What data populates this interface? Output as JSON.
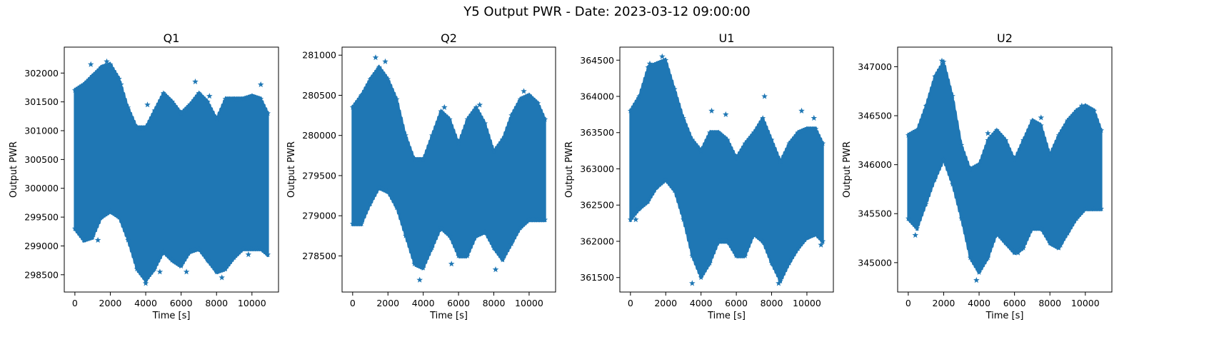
{
  "figure": {
    "title": "Y5 Output PWR - Date: 2023-03-12 09:00:00"
  },
  "chart_data": [
    {
      "type": "scatter",
      "title": "Q1",
      "xlabel": "Time [s]",
      "ylabel": "Output PWR",
      "marker": "star",
      "color": "#1f77b4",
      "xlim": [
        -600,
        11500
      ],
      "ylim": [
        298200,
        302450
      ],
      "xticks": [
        0,
        2000,
        4000,
        6000,
        8000,
        10000
      ],
      "yticks": [
        298500,
        299000,
        299500,
        300000,
        300500,
        301000,
        301500,
        302000
      ],
      "x_range": [
        0,
        10900
      ],
      "upper_envelope": [
        [
          0,
          301700
        ],
        [
          500,
          301800
        ],
        [
          1000,
          301950
        ],
        [
          1500,
          302100
        ],
        [
          2000,
          302150
        ],
        [
          2500,
          301900
        ],
        [
          3000,
          301400
        ],
        [
          3500,
          301050
        ],
        [
          4000,
          301050
        ],
        [
          4500,
          301350
        ],
        [
          5000,
          301650
        ],
        [
          5500,
          301500
        ],
        [
          6000,
          301300
        ],
        [
          6500,
          301450
        ],
        [
          7000,
          301650
        ],
        [
          7500,
          301500
        ],
        [
          8000,
          301200
        ],
        [
          8500,
          301550
        ],
        [
          9000,
          301550
        ],
        [
          9500,
          301550
        ],
        [
          10000,
          301600
        ],
        [
          10500,
          301550
        ],
        [
          10900,
          301300
        ]
      ],
      "lower_envelope": [
        [
          0,
          299300
        ],
        [
          500,
          299100
        ],
        [
          1000,
          299150
        ],
        [
          1500,
          299500
        ],
        [
          2000,
          299600
        ],
        [
          2500,
          299500
        ],
        [
          3000,
          299100
        ],
        [
          3500,
          298600
        ],
        [
          4000,
          298400
        ],
        [
          4500,
          298600
        ],
        [
          5000,
          298900
        ],
        [
          5500,
          298750
        ],
        [
          6000,
          298650
        ],
        [
          6500,
          298900
        ],
        [
          7000,
          298950
        ],
        [
          7500,
          298750
        ],
        [
          8000,
          298550
        ],
        [
          8500,
          298600
        ],
        [
          9000,
          298800
        ],
        [
          9500,
          298950
        ],
        [
          10000,
          298950
        ],
        [
          10500,
          298950
        ],
        [
          10900,
          298850
        ]
      ],
      "outliers": [
        [
          900,
          302150
        ],
        [
          1800,
          302200
        ],
        [
          2600,
          301800
        ],
        [
          4100,
          301450
        ],
        [
          6800,
          301850
        ],
        [
          7600,
          301600
        ],
        [
          10500,
          301800
        ],
        [
          1300,
          299100
        ],
        [
          4000,
          298350
        ],
        [
          4800,
          298550
        ],
        [
          6300,
          298550
        ],
        [
          8300,
          298450
        ],
        [
          9800,
          298850
        ]
      ]
    },
    {
      "type": "scatter",
      "title": "Q2",
      "xlabel": "Time [s]",
      "ylabel": "Output PWR",
      "marker": "star",
      "color": "#1f77b4",
      "xlim": [
        -600,
        11500
      ],
      "ylim": [
        278050,
        281100
      ],
      "xticks": [
        0,
        2000,
        4000,
        6000,
        8000,
        10000
      ],
      "yticks": [
        278500,
        279000,
        279500,
        280000,
        280500,
        281000
      ],
      "x_range": [
        0,
        10900
      ],
      "upper_envelope": [
        [
          0,
          280350
        ],
        [
          500,
          280500
        ],
        [
          1000,
          280700
        ],
        [
          1500,
          280850
        ],
        [
          2000,
          280700
        ],
        [
          2500,
          280450
        ],
        [
          3000,
          280000
        ],
        [
          3500,
          279700
        ],
        [
          4000,
          279700
        ],
        [
          4500,
          280000
        ],
        [
          5000,
          280300
        ],
        [
          5500,
          280200
        ],
        [
          6000,
          279900
        ],
        [
          6500,
          280200
        ],
        [
          7000,
          280350
        ],
        [
          7500,
          280150
        ],
        [
          8000,
          279800
        ],
        [
          8500,
          279950
        ],
        [
          9000,
          280250
        ],
        [
          9500,
          280450
        ],
        [
          10000,
          280500
        ],
        [
          10500,
          280400
        ],
        [
          10900,
          280200
        ]
      ],
      "lower_envelope": [
        [
          0,
          278900
        ],
        [
          500,
          278900
        ],
        [
          1000,
          279150
        ],
        [
          1500,
          279350
        ],
        [
          2000,
          279300
        ],
        [
          2500,
          279100
        ],
        [
          3000,
          278750
        ],
        [
          3500,
          278400
        ],
        [
          4000,
          278350
        ],
        [
          4500,
          278600
        ],
        [
          5000,
          278850
        ],
        [
          5500,
          278750
        ],
        [
          6000,
          278500
        ],
        [
          6500,
          278500
        ],
        [
          7000,
          278750
        ],
        [
          7500,
          278800
        ],
        [
          8000,
          278600
        ],
        [
          8500,
          278450
        ],
        [
          9000,
          278650
        ],
        [
          9500,
          278850
        ],
        [
          10000,
          278950
        ],
        [
          10500,
          278950
        ],
        [
          10900,
          278950
        ]
      ],
      "outliers": [
        [
          1300,
          280970
        ],
        [
          1850,
          280920
        ],
        [
          5200,
          280350
        ],
        [
          7200,
          280380
        ],
        [
          9700,
          280550
        ],
        [
          3800,
          278200
        ],
        [
          5600,
          278400
        ],
        [
          8100,
          278330
        ]
      ]
    },
    {
      "type": "scatter",
      "title": "U1",
      "xlabel": "Time [s]",
      "ylabel": "Output PWR",
      "marker": "star",
      "color": "#1f77b4",
      "xlim": [
        -600,
        11500
      ],
      "ylim": [
        361300,
        364680
      ],
      "xticks": [
        0,
        2000,
        4000,
        6000,
        8000,
        10000
      ],
      "yticks": [
        361500,
        362000,
        362500,
        363000,
        363500,
        364000,
        364500
      ],
      "x_range": [
        0,
        10900
      ],
      "upper_envelope": [
        [
          0,
          363800
        ],
        [
          500,
          364000
        ],
        [
          1000,
          364400
        ],
        [
          1500,
          364450
        ],
        [
          2000,
          364500
        ],
        [
          2500,
          364100
        ],
        [
          3000,
          363700
        ],
        [
          3500,
          363400
        ],
        [
          4000,
          363250
        ],
        [
          4500,
          363500
        ],
        [
          5000,
          363500
        ],
        [
          5500,
          363400
        ],
        [
          6000,
          363150
        ],
        [
          6500,
          363350
        ],
        [
          7000,
          363500
        ],
        [
          7500,
          363700
        ],
        [
          8000,
          363400
        ],
        [
          8500,
          363100
        ],
        [
          9000,
          363350
        ],
        [
          9500,
          363500
        ],
        [
          10000,
          363550
        ],
        [
          10500,
          363550
        ],
        [
          10900,
          363350
        ]
      ],
      "lower_envelope": [
        [
          0,
          362300
        ],
        [
          500,
          362450
        ],
        [
          1000,
          362550
        ],
        [
          1500,
          362750
        ],
        [
          2000,
          362850
        ],
        [
          2500,
          362700
        ],
        [
          3000,
          362300
        ],
        [
          3500,
          361800
        ],
        [
          4000,
          361500
        ],
        [
          4500,
          361700
        ],
        [
          5000,
          362000
        ],
        [
          5500,
          362000
        ],
        [
          6000,
          361800
        ],
        [
          6500,
          361800
        ],
        [
          7000,
          362100
        ],
        [
          7500,
          362000
        ],
        [
          8000,
          361700
        ],
        [
          8500,
          361450
        ],
        [
          9000,
          361700
        ],
        [
          9500,
          361900
        ],
        [
          10000,
          362050
        ],
        [
          10500,
          362100
        ],
        [
          10900,
          362000
        ]
      ],
      "outliers": [
        [
          1100,
          364450
        ],
        [
          1800,
          364550
        ],
        [
          4600,
          363800
        ],
        [
          5400,
          363750
        ],
        [
          7600,
          364000
        ],
        [
          9700,
          363800
        ],
        [
          10400,
          363700
        ],
        [
          300,
          362300
        ],
        [
          3500,
          361420
        ],
        [
          6100,
          361850
        ],
        [
          8400,
          361420
        ],
        [
          10800,
          361950
        ]
      ]
    },
    {
      "type": "scatter",
      "title": "U2",
      "xlabel": "Time [s]",
      "ylabel": "Output PWR",
      "marker": "star",
      "color": "#1f77b4",
      "xlim": [
        -600,
        11500
      ],
      "ylim": [
        344700,
        347200
      ],
      "xticks": [
        0,
        2000,
        4000,
        6000,
        8000,
        10000
      ],
      "yticks": [
        345000,
        345500,
        346000,
        346500,
        347000
      ],
      "x_range": [
        0,
        10900
      ],
      "upper_envelope": [
        [
          0,
          346300
        ],
        [
          500,
          346350
        ],
        [
          1000,
          346600
        ],
        [
          1500,
          346900
        ],
        [
          2000,
          347050
        ],
        [
          2500,
          346700
        ],
        [
          3000,
          346200
        ],
        [
          3500,
          345950
        ],
        [
          4000,
          346000
        ],
        [
          4500,
          346250
        ],
        [
          5000,
          346350
        ],
        [
          5500,
          346250
        ],
        [
          6000,
          346050
        ],
        [
          6500,
          346250
        ],
        [
          7000,
          346450
        ],
        [
          7500,
          346400
        ],
        [
          8000,
          346100
        ],
        [
          8500,
          346300
        ],
        [
          9000,
          346450
        ],
        [
          9500,
          346550
        ],
        [
          10000,
          346600
        ],
        [
          10500,
          346550
        ],
        [
          10900,
          346350
        ]
      ],
      "lower_envelope": [
        [
          0,
          345450
        ],
        [
          500,
          345350
        ],
        [
          1000,
          345600
        ],
        [
          1500,
          345850
        ],
        [
          2000,
          346050
        ],
        [
          2500,
          345800
        ],
        [
          3000,
          345450
        ],
        [
          3500,
          345050
        ],
        [
          4000,
          344900
        ],
        [
          4500,
          345050
        ],
        [
          5000,
          345300
        ],
        [
          5500,
          345200
        ],
        [
          6000,
          345100
        ],
        [
          6500,
          345150
        ],
        [
          7000,
          345350
        ],
        [
          7500,
          345350
        ],
        [
          8000,
          345200
        ],
        [
          8500,
          345150
        ],
        [
          9000,
          345300
        ],
        [
          9500,
          345450
        ],
        [
          10000,
          345550
        ],
        [
          10500,
          345550
        ],
        [
          10900,
          345550
        ]
      ],
      "outliers": [
        [
          1900,
          347060
        ],
        [
          4500,
          346320
        ],
        [
          7500,
          346480
        ],
        [
          9800,
          346600
        ],
        [
          400,
          345280
        ],
        [
          3850,
          344820
        ],
        [
          6200,
          345100
        ],
        [
          8600,
          345180
        ]
      ]
    }
  ]
}
